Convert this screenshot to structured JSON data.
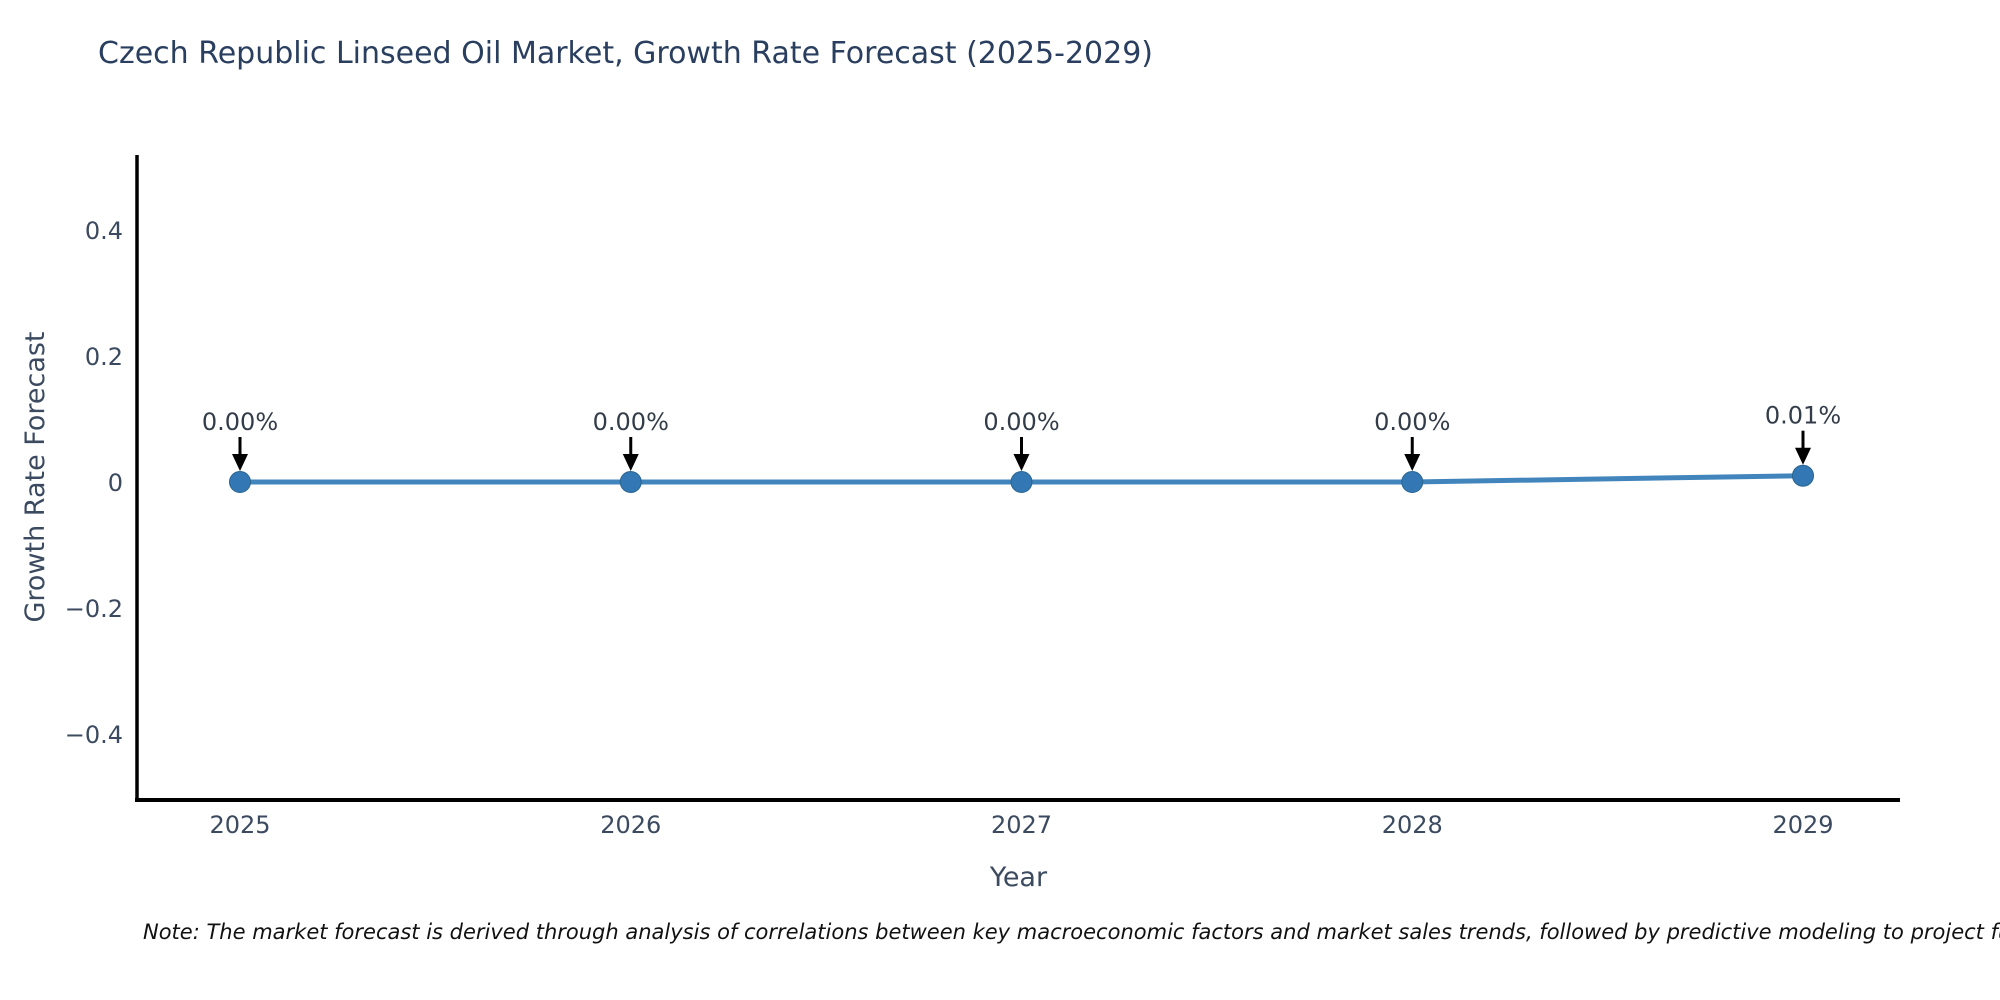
{
  "title": "Czech Republic Linseed Oil Market, Growth Rate Forecast (2025-2029)",
  "note": "Note: The market forecast is derived through analysis of correlations between key macroeconomic factors and market sales trends, followed by predictive modeling to project future sales",
  "chart_data": {
    "type": "line",
    "title": "Czech Republic Linseed Oil Market, Growth Rate Forecast (2025-2029)",
    "xlabel": "Year",
    "ylabel": "Growth Rate Forecast",
    "categories": [
      "2025",
      "2026",
      "2027",
      "2028",
      "2029"
    ],
    "series": [
      {
        "name": "Growth Rate Forecast",
        "values": [
          0.0,
          0.0,
          0.0,
          0.0,
          0.01
        ]
      }
    ],
    "annotations": [
      "0.00%",
      "0.00%",
      "0.00%",
      "0.00%",
      "0.01%"
    ],
    "yticks": [
      0.4,
      0.2,
      0,
      -0.2,
      -0.4
    ],
    "ytick_labels": [
      "0.4",
      "0.2",
      "0",
      "−0.2",
      "−0.4"
    ],
    "ylim": [
      -0.51,
      0.52
    ],
    "grid": false,
    "legend": "none",
    "colors": {
      "line": "#4285bd",
      "marker": "#3377b4",
      "marker_edge": "#28648f",
      "axis": "#000000",
      "title": "#2a3f5f",
      "tick": "#3b4a5f",
      "annotation_text": "#333c49",
      "arrow": "#000000"
    }
  }
}
